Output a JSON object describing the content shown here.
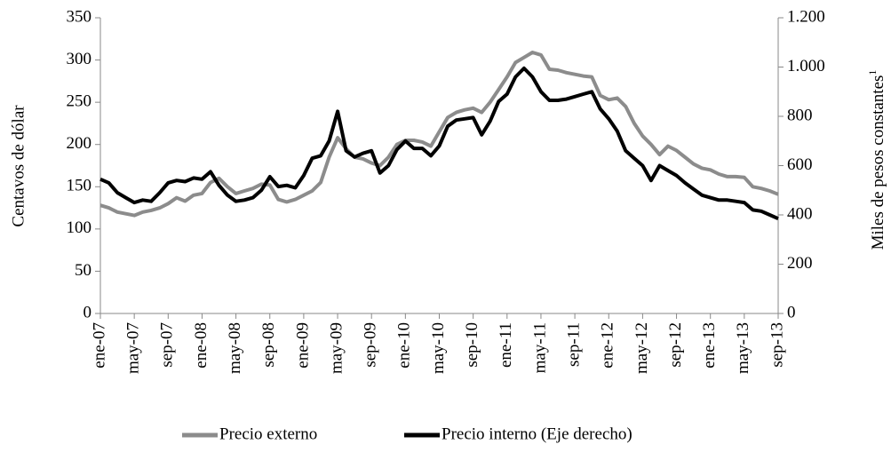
{
  "chart_data": {
    "type": "line",
    "ylabel": "Centavos de dólar",
    "y2label": "Miles de pesos constantes",
    "y2label_note": "1",
    "categories": [
      "ene-07",
      null,
      null,
      null,
      "may-07",
      null,
      null,
      null,
      "sep-07",
      null,
      null,
      null,
      "ene-08",
      null,
      null,
      null,
      "may-08",
      null,
      null,
      null,
      "sep-08",
      null,
      null,
      null,
      "ene-09",
      null,
      null,
      null,
      "may-09",
      null,
      null,
      null,
      "sep-09",
      null,
      null,
      null,
      "ene-10",
      null,
      null,
      null,
      "may-10",
      null,
      null,
      null,
      "sep-10",
      null,
      null,
      null,
      "ene-11",
      null,
      null,
      null,
      "may-11",
      null,
      null,
      null,
      "sep-11",
      null,
      null,
      null,
      "ene-12",
      null,
      null,
      null,
      "may-12",
      null,
      null,
      null,
      "sep-12",
      null,
      null,
      null,
      "ene-13",
      null,
      null,
      null,
      "may-13",
      null,
      null,
      null,
      "sep-13"
    ],
    "series": [
      {
        "name": "Precio externo",
        "color": "#8c8c8c",
        "values": [
          128,
          125,
          120,
          118,
          116,
          120,
          122,
          125,
          130,
          137,
          133,
          140,
          142,
          155,
          160,
          150,
          142,
          145,
          148,
          153,
          152,
          135,
          132,
          135,
          140,
          145,
          155,
          185,
          208,
          195,
          185,
          183,
          178,
          175,
          185,
          200,
          205,
          205,
          203,
          198,
          215,
          232,
          238,
          241,
          243,
          238,
          250,
          265,
          280,
          297,
          303,
          309,
          306,
          289,
          288,
          285,
          283,
          281,
          280,
          258,
          253,
          255,
          245,
          225,
          210,
          200,
          188,
          198,
          193,
          185,
          177,
          172,
          170,
          165,
          162,
          162,
          161,
          150,
          148,
          145,
          141
        ]
      },
      {
        "name": "Precio interno (Eje derecho)",
        "color": "#000000",
        "axis": "y2",
        "values": [
          545,
          530,
          490,
          470,
          450,
          460,
          455,
          490,
          530,
          540,
          535,
          550,
          545,
          575,
          520,
          480,
          455,
          460,
          470,
          500,
          555,
          515,
          520,
          510,
          560,
          630,
          640,
          700,
          820,
          660,
          635,
          650,
          660,
          570,
          600,
          665,
          700,
          670,
          670,
          640,
          680,
          760,
          785,
          790,
          795,
          725,
          780,
          860,
          890,
          960,
          995,
          960,
          900,
          865,
          865,
          870,
          880,
          890,
          900,
          830,
          790,
          740,
          660,
          630,
          600,
          540,
          600,
          580,
          560,
          530,
          505,
          480,
          470,
          460,
          460,
          455,
          450,
          420,
          415,
          400,
          385
        ]
      }
    ],
    "ylim": [
      0,
      350
    ],
    "yticks": [
      0,
      50,
      100,
      150,
      200,
      250,
      300,
      350
    ],
    "y2lim": [
      0,
      1200
    ],
    "y2ticks": [
      0,
      200,
      400,
      600,
      800,
      {
        "value": 1000,
        "label": "1.000"
      },
      {
        "value": 1200,
        "label": "1.200"
      }
    ],
    "legend": "bottom"
  }
}
